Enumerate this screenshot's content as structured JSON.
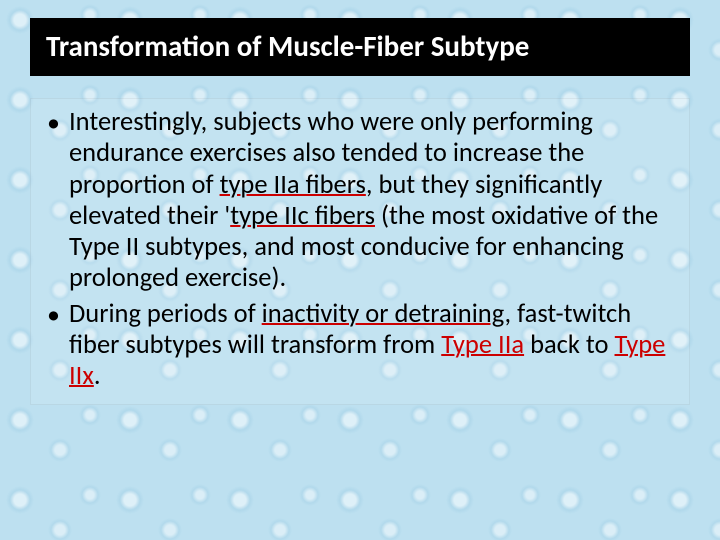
{
  "title": "Transformation of Muscle-Fiber Subtype",
  "bullets": [
    {
      "pre1": "Interestingly, subjects who were only performing endurance exercises also tended to increase the proportion of ",
      "hl1": "type IIa fibers",
      "mid1": ", but they significantly elevated their '",
      "hl2": "type IIc fibers",
      "post1": " (the most oxidative of the Type II subtypes, and most conducive for enhancing prolonged exercise)."
    },
    {
      "pre1": "During periods of ",
      "hl1": "inactivity or detraining",
      "mid1": ", fast-twitch fiber subtypes will transform from ",
      "hl2": "Type IIa",
      "mid2": " back to ",
      "hl3": "Type IIx",
      "post1": "."
    }
  ],
  "colors": {
    "background": "#bde0f0",
    "titleBg": "#000000",
    "titleText": "#ffffff",
    "bodyText": "#000000",
    "highlight": "#cc0000"
  },
  "typography": {
    "titleFontSize": 29,
    "bodyFontSize": 26.5,
    "fontFamily": "Calibri"
  }
}
